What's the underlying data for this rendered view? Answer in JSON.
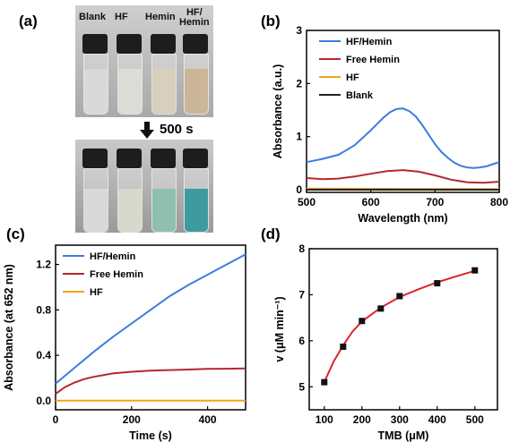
{
  "panel_labels": {
    "a": "(a)",
    "b": "(b)",
    "c": "(c)",
    "d": "(d)"
  },
  "photo": {
    "vial_labels": [
      "Blank",
      "HF",
      "Hemin",
      "HF/\nHemin"
    ],
    "top_liquid_colors": [
      "#d9d9d9",
      "#dcdbd5",
      "#d8d0bd",
      "#cbb797"
    ],
    "bottom_liquid_colors": [
      "#d9d9d9",
      "#d8d8cc",
      "#8fbfb0",
      "#3d9ba0"
    ],
    "arrow_label": "500 s"
  },
  "chart_data": [
    {
      "id": "b",
      "type": "line",
      "xlabel": "Wavelength (nm)",
      "ylabel": "Absorbance (a.u.)",
      "xlim": [
        500,
        800
      ],
      "ylim": [
        -0.05,
        3
      ],
      "xticks": [
        500,
        600,
        700,
        800
      ],
      "yticks": [
        0,
        1,
        2,
        3
      ],
      "legend_position": "top-left",
      "series": [
        {
          "name": "HF/Hemin",
          "color": "#3b7ddd",
          "x": [
            500,
            525,
            550,
            575,
            600,
            610,
            620,
            630,
            640,
            650,
            660,
            670,
            680,
            690,
            700,
            710,
            720,
            730,
            740,
            750,
            760,
            770,
            780,
            790,
            800
          ],
          "y": [
            0.52,
            0.58,
            0.66,
            0.84,
            1.12,
            1.24,
            1.36,
            1.46,
            1.52,
            1.53,
            1.48,
            1.38,
            1.22,
            1.04,
            0.86,
            0.71,
            0.6,
            0.51,
            0.45,
            0.42,
            0.41,
            0.42,
            0.44,
            0.48,
            0.52
          ]
        },
        {
          "name": "Free Hemin",
          "color": "#b8262e",
          "x": [
            500,
            525,
            550,
            575,
            600,
            625,
            650,
            675,
            700,
            725,
            750,
            775,
            800
          ],
          "y": [
            0.22,
            0.2,
            0.21,
            0.25,
            0.3,
            0.35,
            0.37,
            0.34,
            0.27,
            0.19,
            0.14,
            0.13,
            0.15
          ]
        },
        {
          "name": "HF",
          "color": "#f2a21a",
          "x": [
            500,
            800
          ],
          "y": [
            0.02,
            0.01
          ]
        },
        {
          "name": "Blank",
          "color": "#222222",
          "x": [
            500,
            800
          ],
          "y": [
            0.0,
            0.0
          ]
        }
      ]
    },
    {
      "id": "c",
      "type": "line",
      "xlabel": "Time (s)",
      "ylabel": "Absorbance (at 652 nm)",
      "xlim": [
        0,
        500
      ],
      "ylim": [
        -0.08,
        1.37
      ],
      "xticks": [
        0,
        200,
        400
      ],
      "yticks": [
        0.0,
        0.4,
        0.8,
        1.2
      ],
      "ytick_labels": [
        "0.0",
        "0.4",
        "0.8",
        "1.2"
      ],
      "legend_position": "top-left",
      "series": [
        {
          "name": "HF/Hemin",
          "color": "#3b7ddd",
          "x": [
            0,
            25,
            50,
            75,
            100,
            150,
            200,
            250,
            300,
            350,
            400,
            450,
            500
          ],
          "y": [
            0.15,
            0.22,
            0.29,
            0.36,
            0.43,
            0.56,
            0.68,
            0.8,
            0.92,
            1.02,
            1.11,
            1.2,
            1.29
          ]
        },
        {
          "name": "Free Hemin",
          "color": "#b8262e",
          "x": [
            0,
            25,
            50,
            75,
            100,
            150,
            200,
            250,
            300,
            350,
            400,
            450,
            500
          ],
          "y": [
            0.06,
            0.12,
            0.16,
            0.19,
            0.21,
            0.24,
            0.255,
            0.265,
            0.27,
            0.275,
            0.28,
            0.282,
            0.285
          ]
        },
        {
          "name": "HF",
          "color": "#f2a21a",
          "x": [
            0,
            500
          ],
          "y": [
            0.0,
            0.0
          ]
        }
      ]
    },
    {
      "id": "d",
      "type": "scatter",
      "xlabel": "TMB (μM)",
      "ylabel": "v (μM min⁻¹)",
      "xlim": [
        60,
        560
      ],
      "ylim": [
        4.5,
        8
      ],
      "xticks": [
        100,
        200,
        300,
        400,
        500
      ],
      "yticks": [
        5,
        6,
        7,
        8
      ],
      "points": {
        "x": [
          100,
          150,
          200,
          250,
          300,
          400,
          500
        ],
        "y": [
          5.1,
          5.87,
          6.43,
          6.7,
          6.97,
          7.25,
          7.53
        ],
        "color": "#111111"
      },
      "fit": {
        "color": "#e0232b",
        "x": [
          100,
          125,
          150,
          175,
          200,
          250,
          300,
          350,
          400,
          450,
          500
        ],
        "y": [
          5.1,
          5.55,
          5.9,
          6.2,
          6.42,
          6.72,
          6.95,
          7.12,
          7.27,
          7.4,
          7.52
        ]
      }
    }
  ]
}
